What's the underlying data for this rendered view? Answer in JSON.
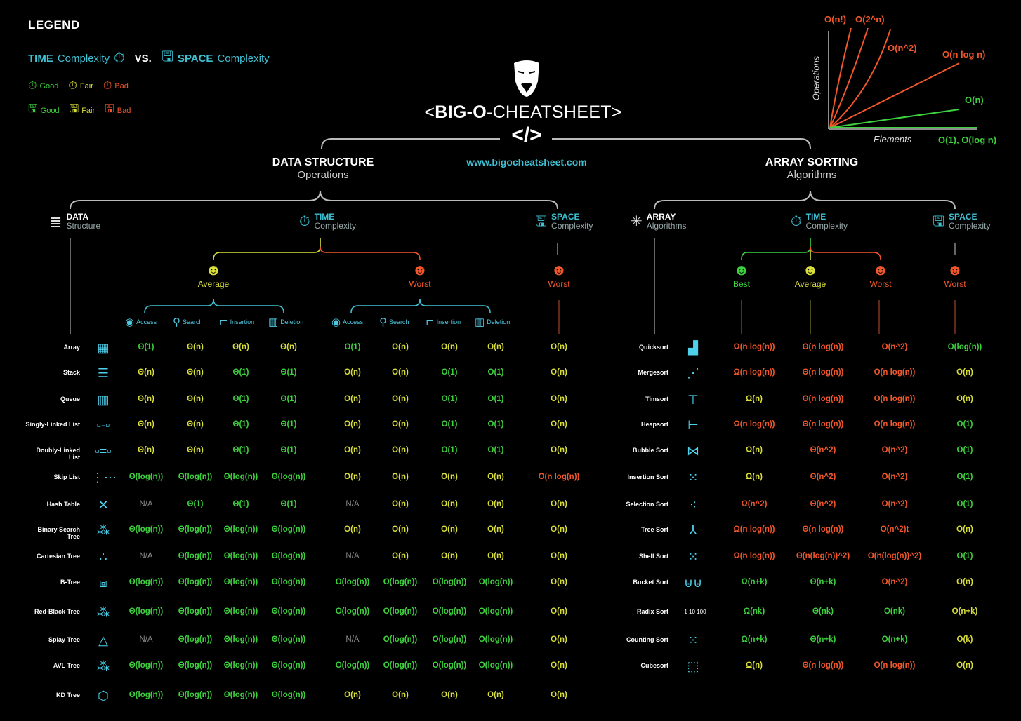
{
  "legend": {
    "title": "LEGEND",
    "time_word": "TIME",
    "time_rest": "Complexity",
    "vs": "VS.",
    "space_word": "SPACE",
    "space_rest": "Complexity",
    "grades": [
      "Good",
      "Fair",
      "Bad"
    ],
    "colors": {
      "good": "#3ed13e",
      "fair": "#d9df3a",
      "bad": "#f1572a",
      "accent": "#3fc1d4"
    }
  },
  "header": {
    "title_open": "<",
    "title_bold": "BIG-O",
    "title_rest": "-CHEATSHEET>",
    "code": "</>",
    "url": "www.bigocheatsheet.com"
  },
  "graph": {
    "ylabel": "Operations",
    "xlabel": "Elements",
    "labels": [
      "O(n!)",
      "O(2^n)",
      "O(n^2)",
      "O(n log n)",
      "O(n)",
      "O(1), O(log n)"
    ]
  },
  "ds": {
    "title": "DATA STRUCTURE",
    "subtitle": "Operations",
    "col_ds": {
      "b": "DATA",
      "s": "Structure"
    },
    "col_time": {
      "b": "TIME",
      "s": "Complexity"
    },
    "col_space": {
      "b": "SPACE",
      "s": "Complexity"
    },
    "avg": "Average",
    "worst": "Worst",
    "space_worst": "Worst",
    "ops": [
      "Access",
      "Search",
      "Insertion",
      "Deletion"
    ],
    "rows": [
      {
        "name": "Array",
        "glyph": "▦",
        "cells": [
          "Θ(1)",
          "Θ(n)",
          "Θ(n)",
          "Θ(n)",
          "O(1)",
          "O(n)",
          "O(n)",
          "O(n)",
          "O(n)"
        ],
        "cls": [
          "g",
          "y",
          "y",
          "y",
          "g",
          "y",
          "y",
          "y",
          "y"
        ]
      },
      {
        "name": "Stack",
        "glyph": "☰",
        "cells": [
          "Θ(n)",
          "Θ(n)",
          "Θ(1)",
          "Θ(1)",
          "O(n)",
          "O(n)",
          "O(1)",
          "O(1)",
          "O(n)"
        ],
        "cls": [
          "y",
          "y",
          "g",
          "g",
          "y",
          "y",
          "g",
          "g",
          "y"
        ]
      },
      {
        "name": "Queue",
        "glyph": "▥",
        "cells": [
          "Θ(n)",
          "Θ(n)",
          "Θ(1)",
          "Θ(1)",
          "O(n)",
          "O(n)",
          "O(1)",
          "O(1)",
          "O(n)"
        ],
        "cls": [
          "y",
          "y",
          "g",
          "g",
          "y",
          "y",
          "g",
          "g",
          "y"
        ]
      },
      {
        "name": "Singly-Linked List",
        "glyph": "▫-▫",
        "cells": [
          "Θ(n)",
          "Θ(n)",
          "Θ(1)",
          "Θ(1)",
          "O(n)",
          "O(n)",
          "O(1)",
          "O(1)",
          "O(n)"
        ],
        "cls": [
          "y",
          "y",
          "g",
          "g",
          "y",
          "y",
          "g",
          "g",
          "y"
        ]
      },
      {
        "name": "Doubly-Linked List",
        "glyph": "▫=▫",
        "cells": [
          "Θ(n)",
          "Θ(n)",
          "Θ(1)",
          "Θ(1)",
          "O(n)",
          "O(n)",
          "O(1)",
          "O(1)",
          "O(n)"
        ],
        "cls": [
          "y",
          "y",
          "g",
          "g",
          "y",
          "y",
          "g",
          "g",
          "y"
        ]
      },
      {
        "name": "Skip List",
        "glyph": "⋮⋯",
        "cells": [
          "Θ(log(n))",
          "Θ(log(n))",
          "Θ(log(n))",
          "Θ(log(n))",
          "O(n)",
          "O(n)",
          "O(n)",
          "O(n)",
          "O(n log(n))"
        ],
        "cls": [
          "g",
          "g",
          "g",
          "g",
          "y",
          "y",
          "y",
          "y",
          "r"
        ]
      },
      {
        "name": "Hash Table",
        "glyph": "✕",
        "cells": [
          "N/A",
          "Θ(1)",
          "Θ(1)",
          "Θ(1)",
          "N/A",
          "O(n)",
          "O(n)",
          "O(n)",
          "O(n)"
        ],
        "cls": [
          "n",
          "g",
          "g",
          "g",
          "n",
          "y",
          "y",
          "y",
          "y"
        ]
      },
      {
        "name": "Binary Search Tree",
        "glyph": "⁂",
        "cells": [
          "Θ(log(n))",
          "Θ(log(n))",
          "Θ(log(n))",
          "Θ(log(n))",
          "O(n)",
          "O(n)",
          "O(n)",
          "O(n)",
          "O(n)"
        ],
        "cls": [
          "g",
          "g",
          "g",
          "g",
          "y",
          "y",
          "y",
          "y",
          "y"
        ]
      },
      {
        "name": "Cartesian Tree",
        "glyph": "∴",
        "cells": [
          "N/A",
          "Θ(log(n))",
          "Θ(log(n))",
          "Θ(log(n))",
          "N/A",
          "O(n)",
          "O(n)",
          "O(n)",
          "O(n)"
        ],
        "cls": [
          "n",
          "g",
          "g",
          "g",
          "n",
          "y",
          "y",
          "y",
          "y"
        ]
      },
      {
        "name": "B-Tree",
        "glyph": "⧈",
        "cells": [
          "Θ(log(n))",
          "Θ(log(n))",
          "Θ(log(n))",
          "Θ(log(n))",
          "O(log(n))",
          "O(log(n))",
          "O(log(n))",
          "O(log(n))",
          "O(n)"
        ],
        "cls": [
          "g",
          "g",
          "g",
          "g",
          "g",
          "g",
          "g",
          "g",
          "y"
        ]
      },
      {
        "name": "Red-Black Tree",
        "glyph": "⁂",
        "cells": [
          "Θ(log(n))",
          "Θ(log(n))",
          "Θ(log(n))",
          "Θ(log(n))",
          "O(log(n))",
          "O(log(n))",
          "O(log(n))",
          "O(log(n))",
          "O(n)"
        ],
        "cls": [
          "g",
          "g",
          "g",
          "g",
          "g",
          "g",
          "g",
          "g",
          "y"
        ]
      },
      {
        "name": "Splay Tree",
        "glyph": "△",
        "cells": [
          "N/A",
          "Θ(log(n))",
          "Θ(log(n))",
          "Θ(log(n))",
          "N/A",
          "O(log(n))",
          "O(log(n))",
          "O(log(n))",
          "O(n)"
        ],
        "cls": [
          "n",
          "g",
          "g",
          "g",
          "n",
          "g",
          "g",
          "g",
          "y"
        ]
      },
      {
        "name": "AVL Tree",
        "glyph": "⁂",
        "cells": [
          "Θ(log(n))",
          "Θ(log(n))",
          "Θ(log(n))",
          "Θ(log(n))",
          "O(log(n))",
          "O(log(n))",
          "O(log(n))",
          "O(log(n))",
          "O(n)"
        ],
        "cls": [
          "g",
          "g",
          "g",
          "g",
          "g",
          "g",
          "g",
          "g",
          "y"
        ]
      },
      {
        "name": "KD Tree",
        "glyph": "⬡",
        "cells": [
          "Θ(log(n))",
          "Θ(log(n))",
          "Θ(log(n))",
          "Θ(log(n))",
          "O(n)",
          "O(n)",
          "O(n)",
          "O(n)",
          "O(n)"
        ],
        "cls": [
          "g",
          "g",
          "g",
          "g",
          "y",
          "y",
          "y",
          "y",
          "y"
        ]
      }
    ]
  },
  "sort": {
    "title": "ARRAY SORTING",
    "subtitle": "Algorithms",
    "col_alg": {
      "b": "ARRAY",
      "s": "Algorithms"
    },
    "col_time": {
      "b": "TIME",
      "s": "Complexity"
    },
    "col_space": {
      "b": "SPACE",
      "s": "Complexity"
    },
    "best": "Best",
    "avg": "Average",
    "worst": "Worst",
    "space_worst": "Worst",
    "rows": [
      {
        "name": "Quicksort",
        "glyph": "▟",
        "cells": [
          "Ω(n log(n))",
          "Θ(n log(n))",
          "O(n^2)",
          "O(log(n))"
        ],
        "cls": [
          "r",
          "r",
          "r",
          "g"
        ]
      },
      {
        "name": "Mergesort",
        "glyph": "⋰",
        "cells": [
          "Ω(n log(n))",
          "Θ(n log(n))",
          "O(n log(n))",
          "O(n)"
        ],
        "cls": [
          "r",
          "r",
          "r",
          "y"
        ]
      },
      {
        "name": "Timsort",
        "glyph": "⊤",
        "cells": [
          "Ω(n)",
          "Θ(n log(n))",
          "O(n log(n))",
          "O(n)"
        ],
        "cls": [
          "y",
          "r",
          "r",
          "y"
        ]
      },
      {
        "name": "Heapsort",
        "glyph": "⊢",
        "cells": [
          "Ω(n log(n))",
          "Θ(n log(n))",
          "O(n log(n))",
          "O(1)"
        ],
        "cls": [
          "r",
          "r",
          "r",
          "g"
        ]
      },
      {
        "name": "Bubble Sort",
        "glyph": "⋈",
        "cells": [
          "Ω(n)",
          "Θ(n^2)",
          "O(n^2)",
          "O(1)"
        ],
        "cls": [
          "y",
          "r",
          "r",
          "g"
        ]
      },
      {
        "name": "Insertion Sort",
        "glyph": "⁙",
        "cells": [
          "Ω(n)",
          "Θ(n^2)",
          "O(n^2)",
          "O(1)"
        ],
        "cls": [
          "y",
          "r",
          "r",
          "g"
        ]
      },
      {
        "name": "Selection Sort",
        "glyph": "⁖",
        "cells": [
          "Ω(n^2)",
          "Θ(n^2)",
          "O(n^2)",
          "O(1)"
        ],
        "cls": [
          "r",
          "r",
          "r",
          "g"
        ]
      },
      {
        "name": "Tree Sort",
        "glyph": "⅄",
        "cells": [
          "Ω(n log(n))",
          "Θ(n log(n))",
          "O(n^2)t",
          "O(n)"
        ],
        "cls": [
          "r",
          "r",
          "r",
          "y"
        ]
      },
      {
        "name": "Shell Sort",
        "glyph": "⁙",
        "cells": [
          "Ω(n log(n))",
          "Θ(n(log(n))^2)",
          "O(n(log(n))^2)",
          "O(1)"
        ],
        "cls": [
          "r",
          "r",
          "r",
          "g"
        ]
      },
      {
        "name": "Bucket Sort",
        "glyph": "⊍⊍",
        "cells": [
          "Ω(n+k)",
          "Θ(n+k)",
          "O(n^2)",
          "O(n)"
        ],
        "cls": [
          "g",
          "g",
          "r",
          "y"
        ]
      },
      {
        "name": "Radix Sort",
        "glyph": "1 10 100",
        "cells": [
          "Ω(nk)",
          "Θ(nk)",
          "O(nk)",
          "O(n+k)"
        ],
        "cls": [
          "g",
          "g",
          "g",
          "y"
        ]
      },
      {
        "name": "Counting Sort",
        "glyph": "⁙",
        "cells": [
          "Ω(n+k)",
          "Θ(n+k)",
          "O(n+k)",
          "O(k)"
        ],
        "cls": [
          "g",
          "g",
          "g",
          "y"
        ]
      },
      {
        "name": "Cubesort",
        "glyph": "⬚",
        "cells": [
          "Ω(n)",
          "Θ(n log(n))",
          "O(n log(n))",
          "O(n)"
        ],
        "cls": [
          "y",
          "r",
          "r",
          "y"
        ]
      }
    ]
  }
}
